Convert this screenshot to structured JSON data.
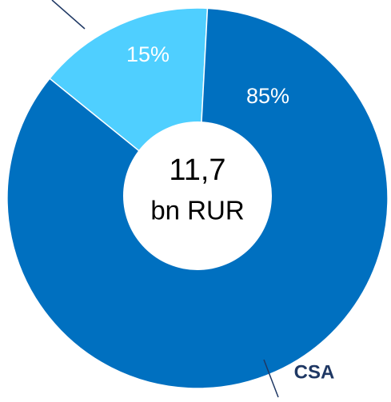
{
  "chart_data": {
    "type": "donut",
    "categories": [
      null,
      "CSA"
    ],
    "values": [
      15,
      85
    ],
    "value_labels": [
      "15%",
      "85%"
    ],
    "colors": [
      "#4fcfff",
      "#0070c0"
    ],
    "center_text": [
      "11,7",
      "bn RUR"
    ]
  }
}
